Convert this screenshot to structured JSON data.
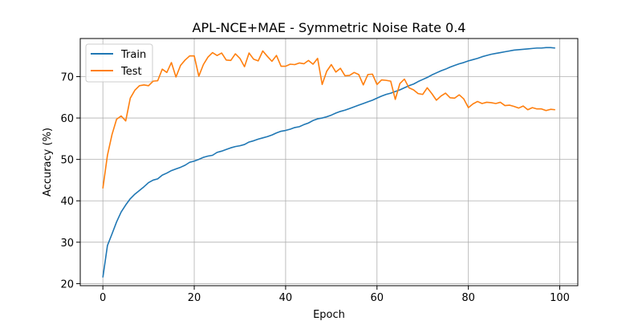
{
  "chart_data": {
    "type": "line",
    "title": "APL-NCE+MAE - Symmetric Noise Rate 0.4",
    "xlabel": "Epoch",
    "ylabel": "Accuracy (%)",
    "xlim": [
      -4.95,
      103.95
    ],
    "ylim": [
      19.5,
      79.2
    ],
    "xticks": [
      0,
      20,
      40,
      60,
      80,
      100
    ],
    "yticks": [
      20,
      30,
      40,
      50,
      60,
      70
    ],
    "grid": true,
    "legend": "top-left",
    "x": [
      0,
      1,
      2,
      3,
      4,
      5,
      6,
      7,
      8,
      9,
      10,
      11,
      12,
      13,
      14,
      15,
      16,
      17,
      18,
      19,
      20,
      21,
      22,
      23,
      24,
      25,
      26,
      27,
      28,
      29,
      30,
      31,
      32,
      33,
      34,
      35,
      36,
      37,
      38,
      39,
      40,
      41,
      42,
      43,
      44,
      45,
      46,
      47,
      48,
      49,
      50,
      51,
      52,
      53,
      54,
      55,
      56,
      57,
      58,
      59,
      60,
      61,
      62,
      63,
      64,
      65,
      66,
      67,
      68,
      69,
      70,
      71,
      72,
      73,
      74,
      75,
      76,
      77,
      78,
      79,
      80,
      81,
      82,
      83,
      84,
      85,
      86,
      87,
      88,
      89,
      90,
      91,
      92,
      93,
      94,
      95,
      96,
      97,
      98,
      99
    ],
    "series": [
      {
        "name": "Train",
        "color": "#1f77b4",
        "values": [
          21.5,
          29.2,
          32.0,
          34.9,
          37.3,
          39.0,
          40.5,
          41.6,
          42.5,
          43.4,
          44.4,
          45.0,
          45.3,
          46.2,
          46.7,
          47.3,
          47.7,
          48.1,
          48.6,
          49.3,
          49.6,
          50.0,
          50.5,
          50.8,
          51.0,
          51.7,
          52.0,
          52.4,
          52.8,
          53.1,
          53.3,
          53.6,
          54.2,
          54.5,
          54.9,
          55.2,
          55.5,
          55.9,
          56.4,
          56.8,
          57.0,
          57.3,
          57.7,
          57.9,
          58.4,
          58.8,
          59.4,
          59.8,
          60.0,
          60.3,
          60.7,
          61.2,
          61.6,
          61.9,
          62.3,
          62.7,
          63.1,
          63.5,
          63.9,
          64.3,
          64.8,
          65.3,
          65.7,
          66.0,
          66.4,
          66.8,
          67.3,
          67.8,
          68.2,
          68.8,
          69.3,
          69.8,
          70.4,
          70.9,
          71.4,
          71.8,
          72.3,
          72.7,
          73.1,
          73.4,
          73.8,
          74.1,
          74.4,
          74.8,
          75.1,
          75.4,
          75.6,
          75.8,
          76.0,
          76.2,
          76.4,
          76.5,
          76.6,
          76.7,
          76.8,
          76.9,
          76.9,
          77.0,
          77.0,
          76.9
        ]
      },
      {
        "name": "Test",
        "color": "#ff7f0e",
        "values": [
          43.0,
          51.0,
          56.0,
          59.7,
          60.5,
          59.3,
          64.8,
          66.7,
          67.8,
          68.0,
          67.8,
          68.9,
          69.0,
          71.8,
          71.0,
          73.4,
          69.9,
          72.7,
          74.0,
          75.0,
          75.0,
          70.1,
          72.9,
          74.7,
          75.8,
          75.1,
          75.7,
          74.0,
          73.9,
          75.5,
          74.4,
          72.4,
          75.7,
          74.2,
          73.8,
          76.2,
          74.9,
          73.7,
          75.1,
          72.5,
          72.5,
          73.0,
          72.9,
          73.3,
          73.1,
          73.9,
          73.0,
          74.4,
          68.1,
          71.3,
          72.9,
          71.1,
          72.0,
          70.2,
          70.3,
          71.0,
          70.5,
          68.0,
          70.5,
          70.6,
          68.1,
          69.2,
          69.1,
          68.9,
          64.5,
          68.3,
          69.4,
          67.3,
          66.8,
          65.9,
          65.7,
          67.3,
          65.9,
          64.3,
          65.3,
          66.0,
          64.9,
          64.8,
          65.6,
          64.6,
          62.5,
          63.4,
          64.0,
          63.5,
          63.8,
          63.7,
          63.5,
          63.8,
          63.0,
          63.1,
          62.8,
          62.4,
          62.9,
          62.0,
          62.5,
          62.2,
          62.2,
          61.8,
          62.1,
          62.0
        ]
      }
    ]
  }
}
